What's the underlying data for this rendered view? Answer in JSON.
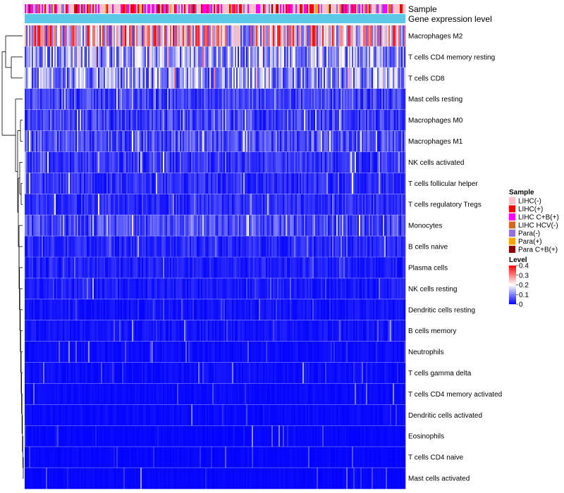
{
  "chart_data": {
    "type": "heatmap",
    "title": "",
    "annotation_tracks": [
      "Sample",
      "Gene expression level"
    ],
    "rows": [
      {
        "label": "Macrophages M2",
        "level": 0.22
      },
      {
        "label": "T cells CD4 memory resting",
        "level": 0.12
      },
      {
        "label": "T cells CD8",
        "level": 0.11
      },
      {
        "label": "Mast cells resting",
        "level": 0.05
      },
      {
        "label": "Macrophages M0",
        "level": 0.05
      },
      {
        "label": "Macrophages M1",
        "level": 0.06
      },
      {
        "label": "NK cells activated",
        "level": 0.04
      },
      {
        "label": "T cells follicular helper",
        "level": 0.035
      },
      {
        "label": "T cells regulatory  Tregs",
        "level": 0.035
      },
      {
        "label": "Monocytes",
        "level": 0.055
      },
      {
        "label": "B cells naive",
        "level": 0.03
      },
      {
        "label": "Plasma cells",
        "level": 0.025
      },
      {
        "label": "NK cells resting",
        "level": 0.02
      },
      {
        "label": "Dendritic cells resting",
        "level": 0.015
      },
      {
        "label": "B cells memory",
        "level": 0.015
      },
      {
        "label": "Neutrophils",
        "level": 0.01
      },
      {
        "label": "T cells gamma delta",
        "level": 0.01
      },
      {
        "label": "T cells CD4 memory activated",
        "level": 0.008
      },
      {
        "label": "Dendritic cells activated",
        "level": 0.008
      },
      {
        "label": "Eosinophils",
        "level": 0.005
      },
      {
        "label": "T cells CD4 naive",
        "level": 0.005
      },
      {
        "label": "Mast cells activated",
        "level": 0.005
      }
    ],
    "sample_legend": {
      "title": "Sample",
      "items": [
        {
          "label": "LIHC(-)",
          "color": "#ffc0cb"
        },
        {
          "label": "LIHC(+)",
          "color": "#ff0000"
        },
        {
          "label": "LIHC C+B(+)",
          "color": "#ff00ff"
        },
        {
          "label": "LIHC HCV(-)",
          "color": "#d2691e"
        },
        {
          "label": "Para(-)",
          "color": "#9370db"
        },
        {
          "label": "Para(+)",
          "color": "#ffa500"
        },
        {
          "label": "Para C+B(+)",
          "color": "#8b0000"
        }
      ]
    },
    "level_legend": {
      "title": "Level",
      "ticks": [
        "0.4",
        "0.3",
        "0.2",
        "0.1",
        "0"
      ],
      "range": [
        0,
        0.4
      ],
      "colors": [
        "#0000ff",
        "#ffffff",
        "#ff0000"
      ]
    },
    "gene_expression_color": "#5bc8e8"
  }
}
